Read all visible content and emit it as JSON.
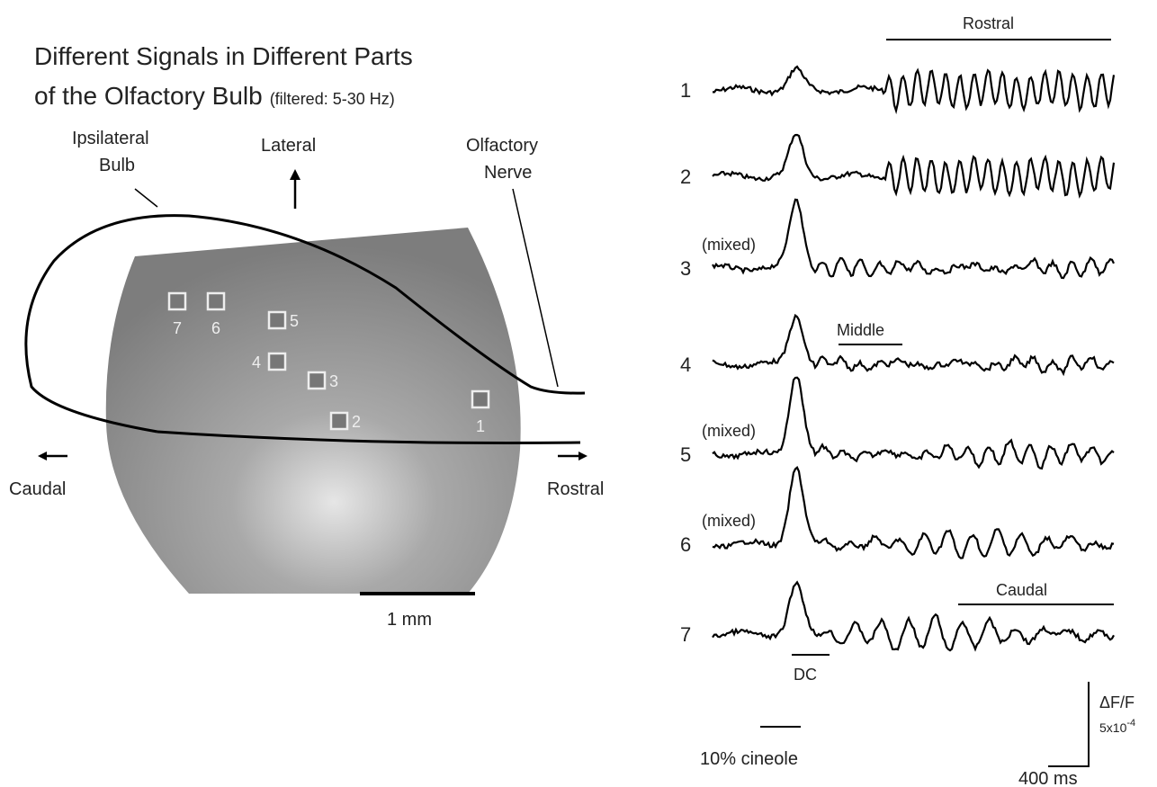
{
  "title": [
    "Different Signals in Different Parts",
    "of the Olfactory Bulb"
  ],
  "subtitle": "(filtered: 5-30 Hz)",
  "image": {
    "labels": {
      "bulb": [
        "Ipsilateral",
        "Bulb"
      ],
      "lateral": "Lateral",
      "nerve": [
        "Olfactory",
        "Nerve"
      ],
      "caudal": "Caudal",
      "rostral": "Rostral"
    },
    "rois": [
      "7",
      "6",
      "5",
      "4",
      "3",
      "2",
      "1"
    ],
    "scale_bar": "1 mm"
  },
  "traces": [
    {
      "label": "1"
    },
    {
      "label": "2"
    },
    {
      "label": "3",
      "note": "(mixed)"
    },
    {
      "label": "4"
    },
    {
      "label": "5",
      "note": "(mixed)"
    },
    {
      "label": "6",
      "note": "(mixed)"
    },
    {
      "label": "7"
    }
  ],
  "regions": {
    "rostral": "Rostral",
    "middle": "Middle",
    "caudal": "Caudal"
  },
  "stimulus": {
    "dc": "DC",
    "odor": "10% cineole"
  },
  "scale": {
    "amplitude": "ΔF/F",
    "amplitude_value": "5x10",
    "exponent": "-4",
    "time": "400 ms"
  }
}
